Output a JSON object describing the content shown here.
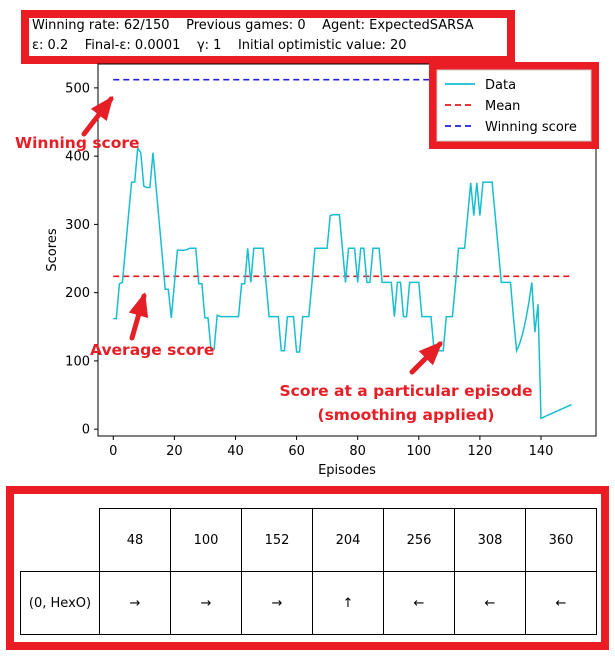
{
  "stats": {
    "line1": "Winning rate: 62/150    Previous games: 0    Agent: ExpectedSARSA",
    "line2": "ε: 0.2    Final-ε: 0.0001    γ: 1    Initial optimistic value: 20"
  },
  "chart_data": {
    "type": "line",
    "xlabel": "Episodes",
    "ylabel": "Scores",
    "xlim": [
      -5,
      158
    ],
    "ylim": [
      -10,
      535
    ],
    "xticks": [
      0,
      20,
      40,
      60,
      80,
      100,
      120,
      140
    ],
    "yticks": [
      0,
      100,
      200,
      300,
      400,
      500
    ],
    "legend_position": "top-right",
    "legend": [
      "Data",
      "Mean",
      "Winning score"
    ],
    "series": [
      {
        "name": "Data",
        "color": "#17becf",
        "x": [
          0,
          1,
          2,
          3,
          4,
          5,
          6,
          7,
          8,
          9,
          10,
          11,
          12,
          13,
          14,
          15,
          16,
          17,
          18,
          19,
          20,
          21,
          22,
          23,
          24,
          25,
          26,
          27,
          28,
          29,
          30,
          31,
          32,
          33,
          34,
          35,
          36,
          37,
          38,
          39,
          40,
          41,
          42,
          43,
          44,
          45,
          46,
          47,
          48,
          49,
          50,
          51,
          52,
          53,
          54,
          55,
          56,
          57,
          58,
          59,
          60,
          61,
          62,
          63,
          64,
          65,
          66,
          67,
          68,
          69,
          70,
          71,
          72,
          73,
          74,
          75,
          76,
          77,
          78,
          79,
          80,
          81,
          82,
          83,
          84,
          85,
          86,
          87,
          88,
          89,
          90,
          91,
          92,
          93,
          94,
          95,
          96,
          97,
          98,
          99,
          100,
          101,
          102,
          103,
          104,
          105,
          106,
          107,
          108,
          109,
          110,
          111,
          112,
          113,
          114,
          115,
          116,
          117,
          118,
          119,
          120,
          121,
          122,
          123,
          124,
          125,
          126,
          127,
          128,
          129,
          130,
          131,
          132,
          133,
          134,
          135,
          136,
          137,
          138,
          139,
          140,
          141,
          142,
          143,
          144,
          145,
          146,
          147,
          148,
          149,
          150
        ],
        "y": [
          162,
          162,
          213,
          215,
          265,
          315,
          362,
          362,
          412,
          405,
          356,
          354,
          354,
          405,
          356,
          305,
          255,
          205,
          205,
          163,
          213,
          262,
          262,
          262,
          263,
          265,
          265,
          265,
          213,
          213,
          163,
          163,
          117,
          117,
          167,
          165,
          165,
          165,
          165,
          165,
          165,
          165,
          213,
          213,
          265,
          215,
          265,
          265,
          265,
          265,
          215,
          165,
          165,
          165,
          165,
          115,
          115,
          165,
          165,
          165,
          113,
          113,
          165,
          165,
          165,
          213,
          265,
          265,
          265,
          265,
          265,
          313,
          314,
          314,
          314,
          265,
          215,
          265,
          265,
          265,
          215,
          265,
          265,
          215,
          215,
          265,
          265,
          265,
          215,
          215,
          215,
          215,
          165,
          215,
          215,
          165,
          165,
          215,
          215,
          215,
          215,
          165,
          165,
          165,
          165,
          115,
          115,
          115,
          115,
          165,
          165,
          165,
          213,
          265,
          265,
          265,
          313,
          361,
          313,
          361,
          313,
          362,
          362,
          362,
          362,
          313,
          265,
          215,
          215,
          215,
          215,
          163,
          115,
          125,
          140,
          160,
          185,
          215,
          142,
          183,
          16,
          18,
          20,
          22,
          24,
          26,
          28,
          30,
          32,
          34,
          36
        ]
      },
      {
        "name": "Mean",
        "color": "#e31a1c",
        "value": 224
      },
      {
        "name": "Winning score",
        "color": "#1f1fdc",
        "value": 512
      }
    ],
    "annotations": [
      "Winning score",
      "Average score",
      "Score at a particular episode",
      "(smoothing applied)"
    ]
  },
  "policy_table": {
    "columns": [
      "48",
      "100",
      "152",
      "204",
      "256",
      "308",
      "360"
    ],
    "row_label": "(0, HexO)",
    "actions": [
      "→",
      "→",
      "→",
      "↑",
      "←",
      "←",
      "←"
    ]
  }
}
